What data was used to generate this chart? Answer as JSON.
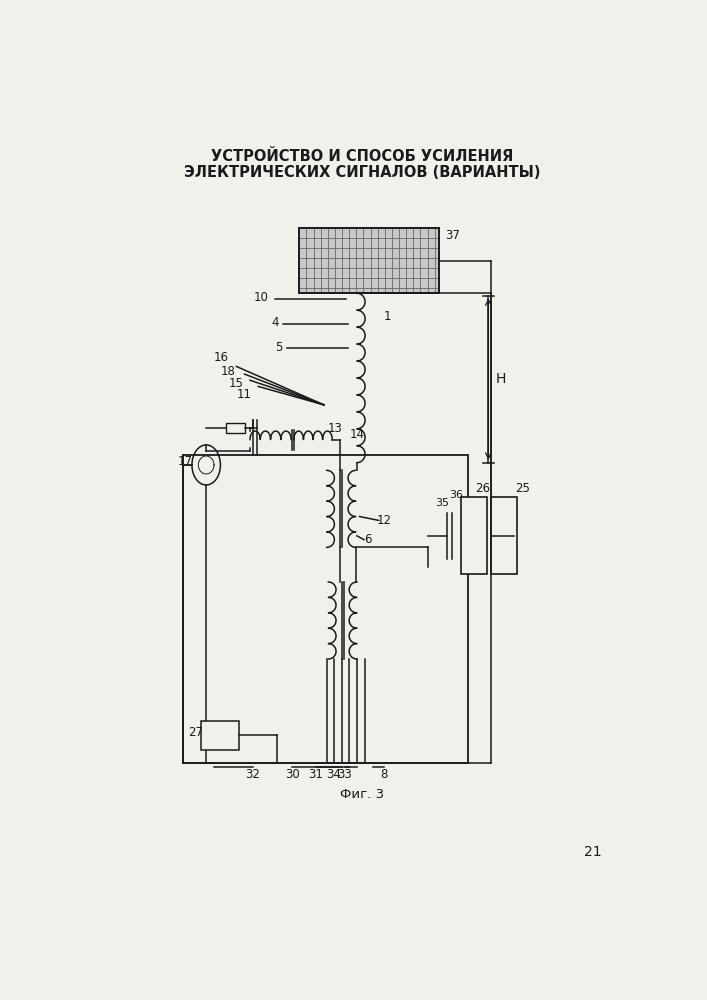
{
  "title_line1": "УСТРОЙСТВО И СПОСОБ УСИЛЕНИЯ",
  "title_line2": "ЭЛЕКТРИЧЕСКИХ СИГНАЛОВ (ВАРИАНТЫ)",
  "fig_label": "Фиг. 3",
  "page_number": "21",
  "bg_color": "#f2f0eb",
  "line_color": "#1a1a1a",
  "title_fontsize": 10.5,
  "label_fontsize": 8.5
}
